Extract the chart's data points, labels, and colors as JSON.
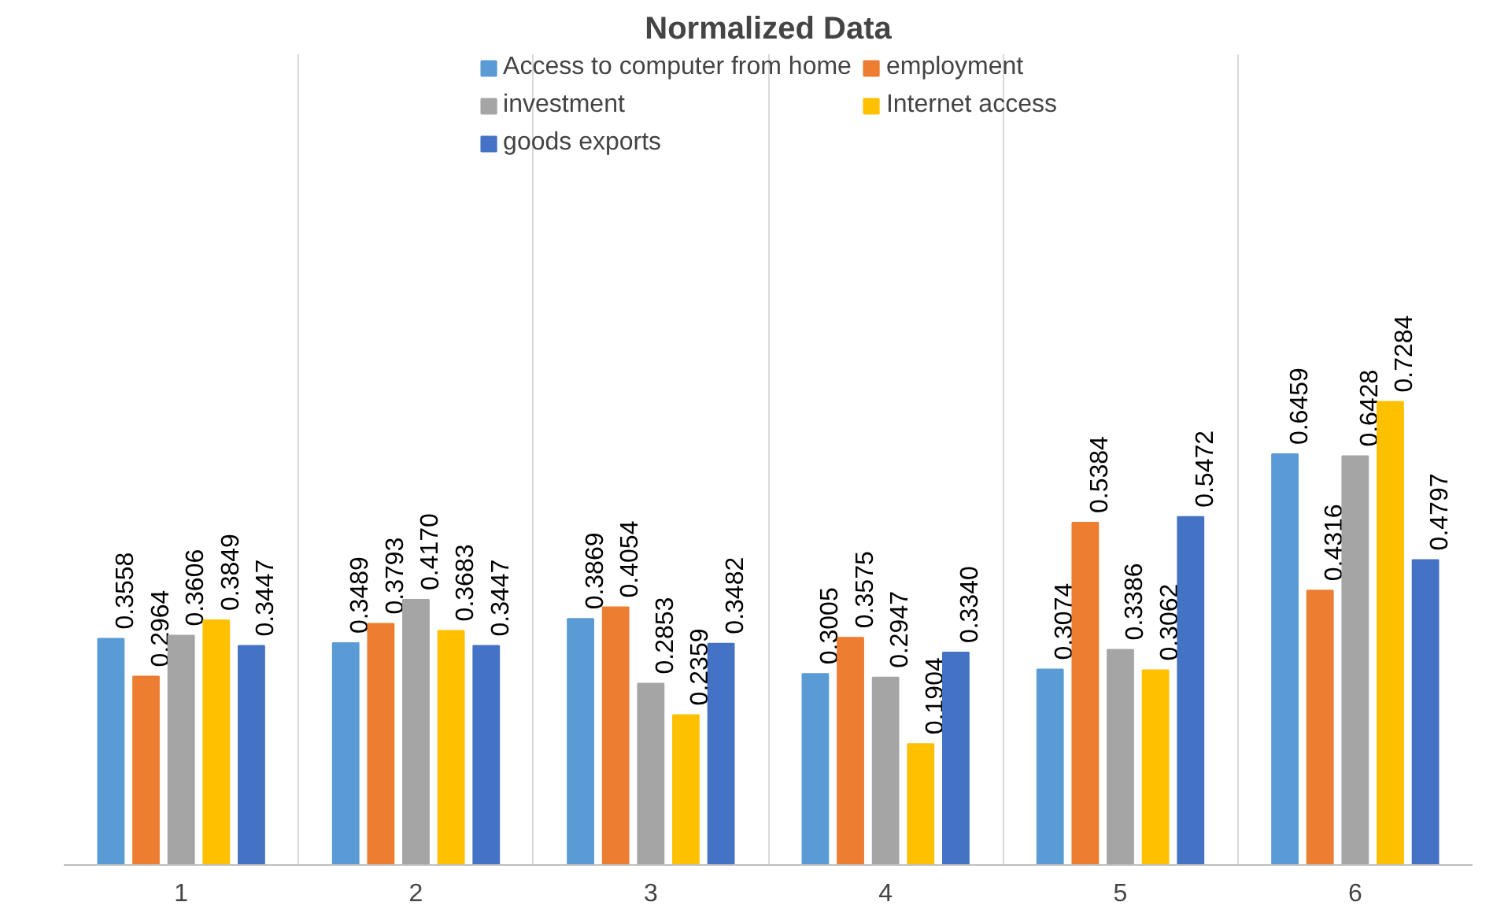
{
  "chart_data": {
    "type": "bar",
    "title": "Normalized Data",
    "categories": [
      "1",
      "2",
      "3",
      "4",
      "5",
      "6"
    ],
    "series": [
      {
        "name": "Access to computer from home",
        "color": "#5b9bd5",
        "values": [
          0.3558,
          0.3489,
          0.3869,
          0.3005,
          0.3074,
          0.6459
        ],
        "value_labels": [
          "0.3558",
          "0.3489",
          "0.3869",
          "0.3005",
          "0.3074",
          "0.6459"
        ]
      },
      {
        "name": "employment",
        "color": "#ed7d31",
        "values": [
          0.2964,
          0.3793,
          0.4054,
          0.3575,
          0.5384,
          0.4316
        ],
        "value_labels": [
          "0.2964",
          "0.3793",
          "0.4054",
          "0.3575",
          "0.5384",
          "0.4316"
        ]
      },
      {
        "name": "investment",
        "color": "#a5a5a5",
        "values": [
          0.3606,
          0.417,
          0.2853,
          0.2947,
          0.3386,
          0.6428
        ],
        "value_labels": [
          "0.3606",
          "0.4170",
          "0.2853",
          "0.2947",
          "0.3386",
          "0.6428"
        ]
      },
      {
        "name": "Internet access",
        "color": "#ffc000",
        "values": [
          0.3849,
          0.3683,
          0.2359,
          0.1904,
          0.3062,
          0.7284
        ],
        "value_labels": [
          "0.3849",
          "0.3683",
          "0.2359",
          "0.1904",
          "0.3062",
          "0.7284"
        ]
      },
      {
        "name": "goods exports",
        "color": "#4472c4",
        "values": [
          0.3447,
          0.3447,
          0.3482,
          0.334,
          0.5472,
          0.4797
        ],
        "value_labels": [
          "0.3447",
          "0.3447",
          "0.3482",
          "0.3340",
          "0.5472",
          "0.4797"
        ]
      }
    ],
    "grid": "x",
    "legend": "top"
  }
}
